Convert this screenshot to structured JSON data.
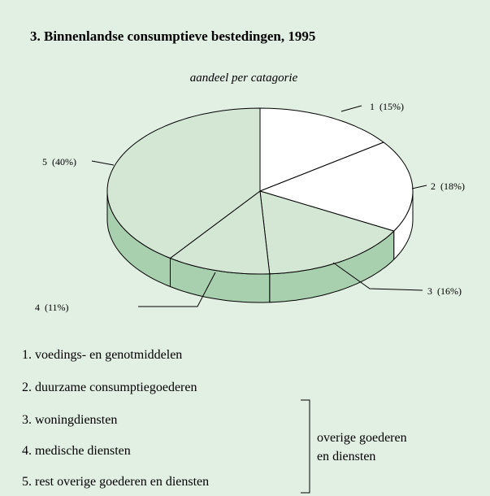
{
  "chart_data": {
    "type": "pie3d",
    "title": "3.  Binnenlandse consumptieve bestedingen, 1995",
    "subtitle": "aandeel per catagorie",
    "categories": [
      "1",
      "2",
      "3",
      "4",
      "5"
    ],
    "values": [
      15,
      18,
      16,
      11,
      40
    ],
    "value_labels": [
      "(15%)",
      "(18%)",
      "(16%)",
      "(11%)",
      "(40%)"
    ],
    "colors": [
      "#ffffff",
      "#ffffff",
      "#d3e7d4",
      "#d3e7d4",
      "#d3e7d4"
    ],
    "side_colors": [
      "#ffffff",
      "#ffffff",
      "#a8cfae",
      "#a8cfae",
      "#a8cfae"
    ],
    "legend": [
      "1. voedings- en genotmiddelen",
      "2. duurzame consumptiegoederen",
      "3. woningdiensten",
      "4. medische diensten",
      "5. rest overige goederen en diensten"
    ],
    "group_label": [
      "overige goederen",
      "en diensten"
    ]
  }
}
